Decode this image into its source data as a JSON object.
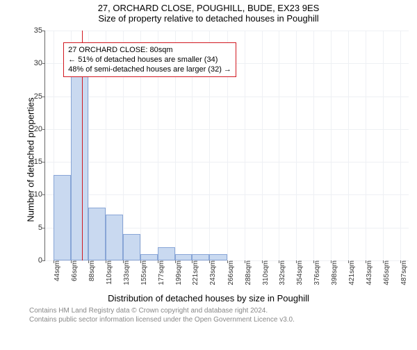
{
  "titles": {
    "line1": "27, ORCHARD CLOSE, POUGHILL, BUDE, EX23 9ES",
    "line2": "Size of property relative to detached houses in Poughill"
  },
  "axes": {
    "ylabel": "Number of detached properties",
    "xlabel": "Distribution of detached houses by size in Poughill"
  },
  "infobox": {
    "line1": "27 ORCHARD CLOSE: 80sqm",
    "line2": "← 51% of detached houses are smaller (34)",
    "line3": "48% of semi-detached houses are larger (32) →",
    "border_color": "#d1171f",
    "left_pct": 5,
    "top_pct": 5
  },
  "marker": {
    "x_value": 80,
    "color": "#d1171f"
  },
  "chart": {
    "type": "histogram",
    "ylim": [
      0,
      35
    ],
    "ytick_step": 5,
    "x_min": 33,
    "x_max": 498,
    "x_ticks": [
      44,
      66,
      88,
      110,
      133,
      155,
      177,
      199,
      221,
      243,
      266,
      288,
      310,
      332,
      354,
      376,
      398,
      421,
      443,
      465,
      487
    ],
    "x_tick_suffix": "sqm",
    "bar_fill": "#c9d9f0",
    "bar_border": "#88a5d6",
    "grid_color": "#eef0f4",
    "background_color": "#ffffff",
    "bars": [
      {
        "x0": 44,
        "x1": 66,
        "y": 13
      },
      {
        "x0": 66,
        "x1": 88,
        "y": 28
      },
      {
        "x0": 88,
        "x1": 110,
        "y": 8
      },
      {
        "x0": 110,
        "x1": 133,
        "y": 7
      },
      {
        "x0": 133,
        "x1": 155,
        "y": 4
      },
      {
        "x0": 155,
        "x1": 177,
        "y": 1
      },
      {
        "x0": 177,
        "x1": 199,
        "y": 2
      },
      {
        "x0": 199,
        "x1": 221,
        "y": 1
      },
      {
        "x0": 221,
        "x1": 243,
        "y": 1
      },
      {
        "x0": 243,
        "x1": 266,
        "y": 1
      },
      {
        "x0": 266,
        "x1": 288,
        "y": 0
      },
      {
        "x0": 288,
        "x1": 310,
        "y": 0
      },
      {
        "x0": 310,
        "x1": 332,
        "y": 0
      },
      {
        "x0": 332,
        "x1": 354,
        "y": 0
      },
      {
        "x0": 354,
        "x1": 376,
        "y": 0
      },
      {
        "x0": 376,
        "x1": 398,
        "y": 0
      },
      {
        "x0": 398,
        "x1": 421,
        "y": 0
      },
      {
        "x0": 421,
        "x1": 443,
        "y": 0
      },
      {
        "x0": 443,
        "x1": 465,
        "y": 0
      },
      {
        "x0": 465,
        "x1": 487,
        "y": 0
      }
    ]
  },
  "footer": {
    "line1": "Contains HM Land Registry data © Crown copyright and database right 2024.",
    "line2": "Contains public sector information licensed under the Open Government Licence v3.0."
  }
}
